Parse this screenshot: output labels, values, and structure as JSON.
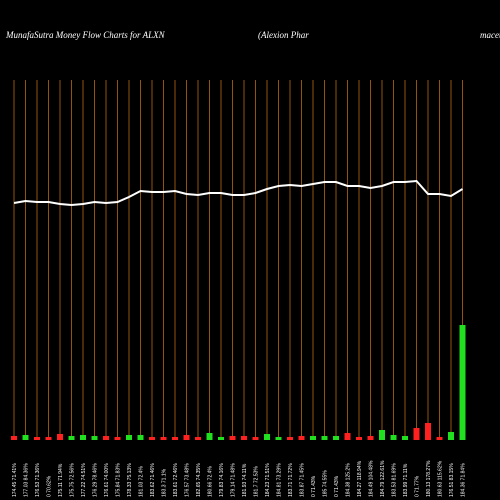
{
  "chart_data": {
    "type": "money-flow",
    "title": "MunafaSutra  Money Flow  Charts for ALXN",
    "subtitle": "(Alexion  Phar",
    "subtitle_end": "maceuticals",
    "categories": [
      "174.45 71.41%",
      "177.03 84.36%",
      "176.53 71.36%",
      "0 70.62%",
      "175.11 71.94%",
      "175.75 72.56%",
      "177.22 74.51%",
      "176.29 78.46%",
      "176.61 74.00%",
      "175.84 71.83%",
      "178.33 75.13%",
      "181.03 72.4%",
      "183.62 71.46%",
      "183.3 71.1%",
      "183.61 72.46%",
      "176.57 73.48%",
      "182.65 74.35%",
      "180.66 72.4%",
      "179.83 74.16%",
      "179.14 71.48%",
      "181.93 74.11%",
      "181.7 72.53%",
      "184.23 71.51%",
      "184.81 73.29%",
      "183.71 71.72%",
      "183.87 71.45%",
      "0 71.43%",
      "185 74.55%",
      "0 71.43%",
      "184.38 125.2%",
      "184.27 118.94%",
      "184.49 104.48%",
      "184.79 122.61%",
      "183.53 81.69%",
      "183.99 71.11%",
      "0 71.77%",
      "180.13 178.27%",
      "180.63 115.62%",
      "176.51 83.15%",
      "184.36 71.84%"
    ],
    "line": {
      "color": "#ffffff",
      "values": [
        237,
        239,
        238,
        238,
        236,
        235,
        236,
        238,
        237,
        238,
        243,
        249,
        248,
        248,
        249,
        246,
        245,
        247,
        247,
        245,
        245,
        247,
        251,
        254,
        255,
        254,
        256,
        258,
        258,
        254,
        254,
        252,
        254,
        258,
        258,
        259,
        246,
        246,
        244,
        251
      ]
    },
    "bars": {
      "values": [
        4,
        5,
        3,
        3,
        6,
        4,
        5,
        4,
        4,
        3,
        5,
        5,
        3,
        3,
        3,
        5,
        3,
        7,
        3,
        4,
        4,
        3,
        6,
        3,
        3,
        4,
        4,
        4,
        4,
        7,
        3,
        4,
        10,
        5,
        4,
        12,
        17,
        3,
        8,
        115
      ],
      "colors": [
        "#ff2020",
        "#20e020",
        "#ff2020",
        "#ff2020",
        "#ff2020",
        "#20e020",
        "#20e020",
        "#20e020",
        "#ff2020",
        "#ff2020",
        "#20e020",
        "#20e020",
        "#ff2020",
        "#ff2020",
        "#ff2020",
        "#ff2020",
        "#ff2020",
        "#20e020",
        "#20e020",
        "#ff2020",
        "#ff2020",
        "#ff2020",
        "#20e020",
        "#20e020",
        "#ff2020",
        "#ff2020",
        "#20e020",
        "#20e020",
        "#20e020",
        "#ff2020",
        "#ff2020",
        "#ff2020",
        "#20e020",
        "#20e020",
        "#20e020",
        "#ff2020",
        "#ff2020",
        "#ff2020",
        "#20e020",
        "#20e020"
      ]
    },
    "ylim": [
      0,
      360
    ],
    "grid_color": "#b86a10"
  }
}
